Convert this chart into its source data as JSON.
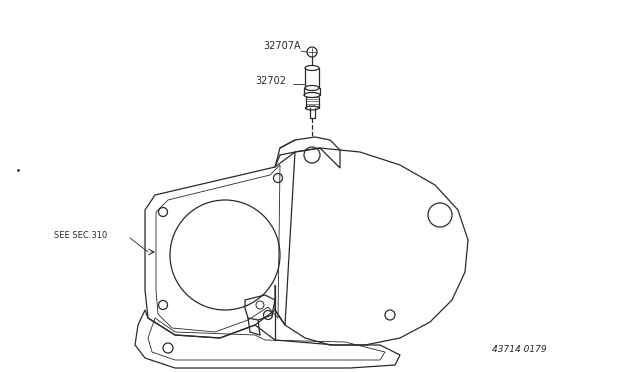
{
  "bg_color": "#ffffff",
  "line_color": "#2a2a2a",
  "label_32707A": "32707A",
  "label_32702": "32702",
  "label_sec": "SEE SEC.310",
  "label_partno": "43714 0179",
  "fig_width": 6.4,
  "fig_height": 3.72,
  "dpi": 100
}
